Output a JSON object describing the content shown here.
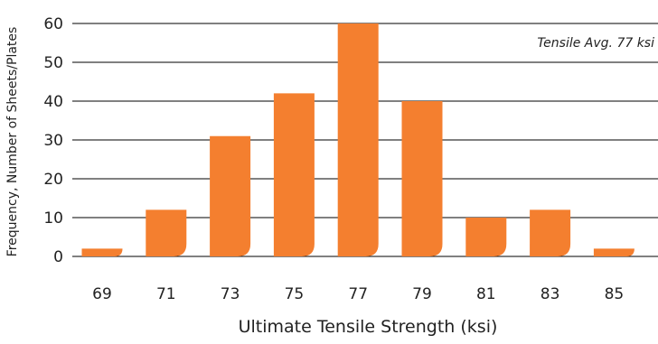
{
  "chart_data": {
    "type": "bar",
    "categories": [
      "69",
      "71",
      "73",
      "75",
      "77",
      "79",
      "81",
      "83",
      "85"
    ],
    "values": [
      2,
      12,
      31,
      42,
      60,
      40,
      10,
      12,
      2
    ],
    "xlabel": "Ultimate Tensile Strength (ksi)",
    "ylabel": "Frequency, Number of Sheets/Plates",
    "ylim": [
      0,
      60
    ],
    "yticks": [
      0,
      10,
      20,
      30,
      40,
      50,
      60
    ],
    "grid": true,
    "annotation": "Tensile Avg. 77 ksi",
    "bar_color": "#F47F2F"
  }
}
